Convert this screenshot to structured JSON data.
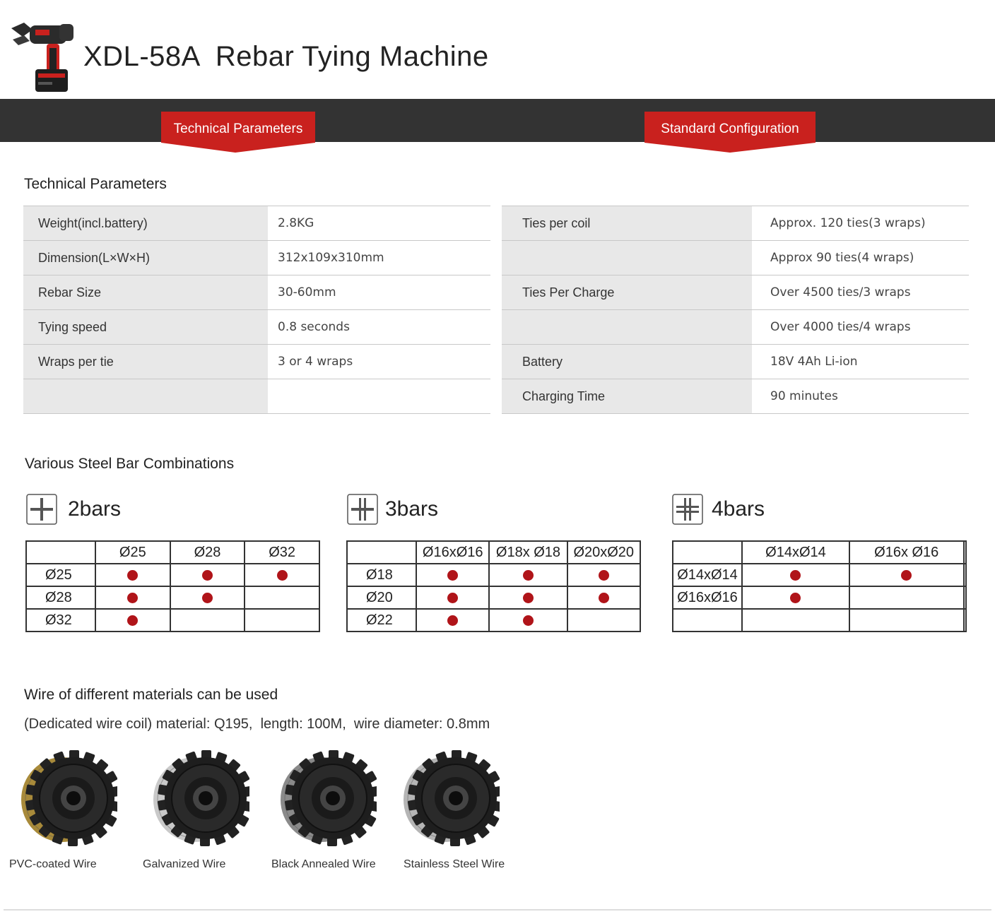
{
  "header": {
    "title": "XDL-58A  Rebar Tying Machine"
  },
  "tabs": [
    {
      "label": "Technical Parameters"
    },
    {
      "label": "Standard Configuration"
    }
  ],
  "tech": {
    "heading": "Technical Parameters",
    "left": [
      {
        "key": "Weight(incl.battery)",
        "value": "2.8KG"
      },
      {
        "key": "Dimension(L×W×H)",
        "value": "312x109x310mm"
      },
      {
        "key": "Rebar Size",
        "value": "30-60mm"
      },
      {
        "key": "Tying speed",
        "value": "0.8 seconds"
      },
      {
        "key": "Wraps per tie",
        "value": "3 or 4 wraps"
      },
      {
        "key": "",
        "value": ""
      }
    ],
    "right": [
      {
        "key": "Ties per coil",
        "value": "Approx. 120 ties(3 wraps)"
      },
      {
        "key": "",
        "value": "Approx 90 ties(4 wraps)"
      },
      {
        "key": "Ties Per Charge",
        "value": "Over 4500 ties/3 wraps"
      },
      {
        "key": "",
        "value": "Over 4000 ties/4 wraps"
      },
      {
        "key": "Battery",
        "value": "18V 4Ah Li-ion"
      },
      {
        "key": "Charging Time",
        "value": "90 minutes"
      }
    ]
  },
  "combos": {
    "heading": "Various Steel Bar Combinations",
    "groups": [
      {
        "title": "2bars",
        "cols": [
          "Ø25",
          "Ø28",
          "Ø32"
        ],
        "rows": [
          {
            "label": "Ø25",
            "marks": [
              true,
              true,
              true
            ]
          },
          {
            "label": "Ø28",
            "marks": [
              true,
              true,
              false
            ]
          },
          {
            "label": "Ø32",
            "marks": [
              true,
              false,
              false
            ]
          }
        ]
      },
      {
        "title": "3bars",
        "cols": [
          "Ø16xØ16",
          "Ø18x Ø18",
          "Ø20xØ20"
        ],
        "rows": [
          {
            "label": "Ø18",
            "marks": [
              true,
              true,
              true
            ]
          },
          {
            "label": "Ø20",
            "marks": [
              true,
              true,
              true
            ]
          },
          {
            "label": "Ø22",
            "marks": [
              true,
              true,
              false
            ]
          }
        ]
      },
      {
        "title": "4bars",
        "cols": [
          "Ø14xØ14",
          "Ø16x Ø16",
          ""
        ],
        "rows": [
          {
            "label": "Ø14xØ14",
            "marks": [
              true,
              true,
              false
            ]
          },
          {
            "label": "Ø16xØ16",
            "marks": [
              true,
              false,
              false
            ]
          },
          {
            "label": "",
            "marks": [
              false,
              false,
              false
            ]
          }
        ]
      }
    ]
  },
  "wire": {
    "heading": "Wire of different materials can be used",
    "spec": "(Dedicated wire coil) material: Q195,  length: 100M,  wire diameter: 0.8mm",
    "items": [
      {
        "label": "PVC-coated Wire",
        "wire_color": "#a88a3a"
      },
      {
        "label": "Galvanized Wire",
        "wire_color": "#c9c9c9"
      },
      {
        "label": "Black Annealed Wire",
        "wire_color": "#8a8a8a"
      },
      {
        "label": "Stainless Steel Wire",
        "wire_color": "#b5b5b5"
      }
    ]
  },
  "colors": {
    "accent": "#c9211e",
    "dark_bar": "#333333",
    "dot": "#b01419"
  }
}
